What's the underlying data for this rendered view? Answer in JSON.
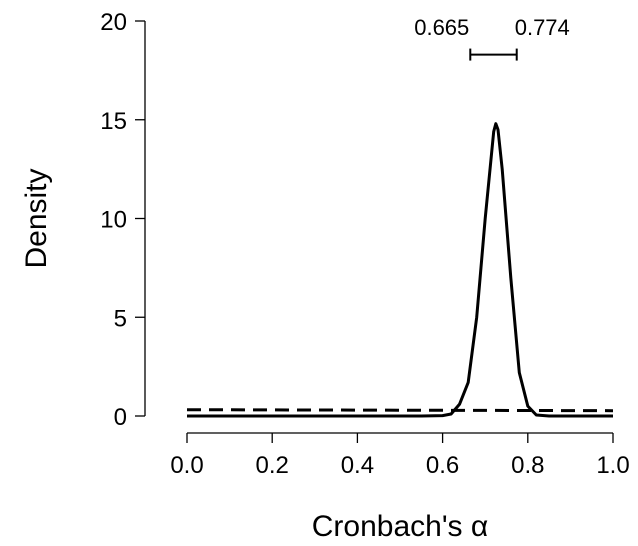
{
  "chart_data": {
    "type": "line",
    "xlabel": "Cronbach's α",
    "ylabel": "Density",
    "xlim": [
      0,
      1
    ],
    "ylim": [
      0,
      20
    ],
    "xticks": [
      0.0,
      0.2,
      0.4,
      0.6,
      0.8,
      1.0
    ],
    "xtick_labels": [
      "0.0",
      "0.2",
      "0.4",
      "0.6",
      "0.8",
      "1.0"
    ],
    "yticks": [
      0,
      5,
      10,
      15,
      20
    ],
    "ytick_labels": [
      "0",
      "5",
      "10",
      "15",
      "20"
    ],
    "grid": false,
    "series": [
      {
        "style": "solid",
        "x": [
          0.0,
          0.1,
          0.2,
          0.3,
          0.4,
          0.5,
          0.55,
          0.6,
          0.62,
          0.64,
          0.66,
          0.68,
          0.7,
          0.72,
          0.725,
          0.73,
          0.74,
          0.76,
          0.78,
          0.8,
          0.82,
          0.85,
          0.9,
          0.95,
          1.0
        ],
        "y": [
          0,
          0,
          0,
          0,
          0,
          0,
          0,
          0.02,
          0.1,
          0.6,
          1.7,
          5.0,
          10.0,
          14.4,
          14.8,
          14.5,
          12.5,
          7.0,
          2.2,
          0.5,
          0.05,
          0,
          0,
          0,
          0
        ]
      },
      {
        "style": "dashed",
        "x": [
          0.0,
          0.2,
          0.4,
          0.6,
          0.8,
          1.0
        ],
        "y": [
          0.32,
          0.31,
          0.3,
          0.29,
          0.28,
          0.27
        ]
      }
    ],
    "annotations": {
      "ci_lower": "0.665",
      "ci_upper": "0.774",
      "ci_y": 18.3
    }
  }
}
